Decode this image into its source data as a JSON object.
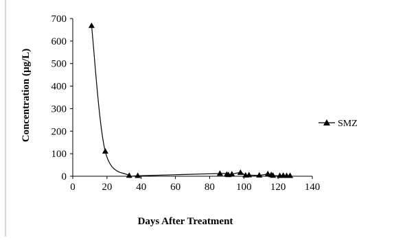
{
  "chart_data": {
    "type": "line",
    "title": "",
    "xlabel": "Days After Treatment",
    "ylabel": "Concentration (µg/L)",
    "xlim": [
      0,
      140
    ],
    "ylim": [
      0,
      700
    ],
    "x_ticks": [
      0,
      20,
      40,
      60,
      80,
      100,
      120,
      140
    ],
    "y_ticks": [
      0,
      100,
      200,
      300,
      400,
      500,
      600,
      700
    ],
    "grid": false,
    "legend": "right",
    "series": [
      {
        "name": "SMZ",
        "marker": "triangle",
        "color": "#000000",
        "x": [
          11,
          19,
          33,
          38,
          86,
          90,
          91,
          93,
          98,
          101,
          103,
          109,
          114,
          116,
          117,
          121,
          123,
          125,
          127
        ],
        "y": [
          668,
          110,
          3,
          2,
          12,
          8,
          6,
          9,
          16,
          4,
          5,
          4,
          10,
          6,
          3,
          2,
          3,
          2,
          2
        ]
      }
    ]
  }
}
